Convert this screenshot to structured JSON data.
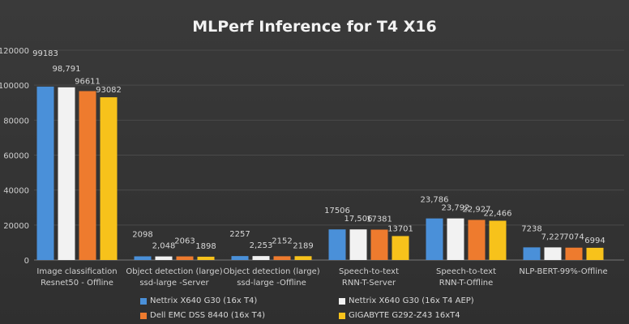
{
  "chart_data": {
    "type": "bar",
    "title": "MLPerf Inference for T4 X16",
    "xlabel": "",
    "ylabel": "",
    "ylim": [
      0,
      120000
    ],
    "yticks": [
      0,
      20000,
      40000,
      60000,
      80000,
      100000,
      120000
    ],
    "grid": true,
    "legend_position": "bottom",
    "categories": [
      "Image classification Resnet50 - Offline",
      "Object detection (large) ssd-large -Server",
      "Object detection (large) ssd-large -Offline",
      "Speech-to-text RNN-T-Server",
      "Speech-to-text RNN-T-Offline",
      "NLP-BERT-99%-Offline"
    ],
    "series": [
      {
        "name": "Nettrix X640 G30 (16x T4)",
        "color": "#4a90d9",
        "values": [
          99183,
          2098,
          2257,
          17506,
          23786,
          7238
        ],
        "labels": [
          "99183",
          "2098",
          "2257",
          "17506",
          "23,786",
          "7238"
        ]
      },
      {
        "name": "Nettrix X640 G30 (16x T4 AEP)",
        "color": "#f2f2f2",
        "values": [
          98791,
          2048,
          2253,
          17506,
          23792,
          7227
        ],
        "labels": [
          "98,791",
          "2,048",
          "2,253",
          "17,506",
          "23,792",
          "7,227"
        ]
      },
      {
        "name": "Dell EMC DSS 8440 (16x T4)",
        "color": "#ee7b2e",
        "values": [
          96611,
          2063,
          2152,
          17381,
          22927,
          7074
        ],
        "labels": [
          "96611",
          "2063",
          "2152",
          "17381",
          "22,927",
          "7074"
        ]
      },
      {
        "name": "GIGABYTE G292-Z43 16xT4",
        "color": "#f7c21b",
        "values": [
          93082,
          1898,
          2189,
          13701,
          22466,
          6994
        ],
        "labels": [
          "93082",
          "1898",
          "2189",
          "13701",
          "22,466",
          "6994"
        ]
      }
    ]
  }
}
